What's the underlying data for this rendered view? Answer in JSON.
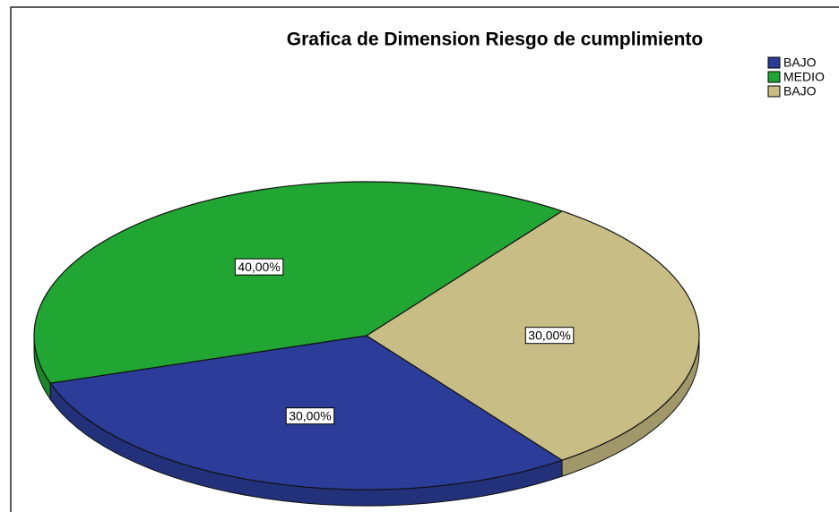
{
  "chart_data": {
    "type": "pie",
    "title": "Grafica de Dimension Riesgo de cumplimiento",
    "categories": [
      "BAJO",
      "MEDIO",
      "BAJO"
    ],
    "values": [
      30,
      40,
      30
    ],
    "value_labels": [
      "30,00%",
      "40,00%",
      "30,00%"
    ],
    "colors": [
      "#2b3d99",
      "#22a633",
      "#c8bd85"
    ],
    "legend": "top-right"
  }
}
